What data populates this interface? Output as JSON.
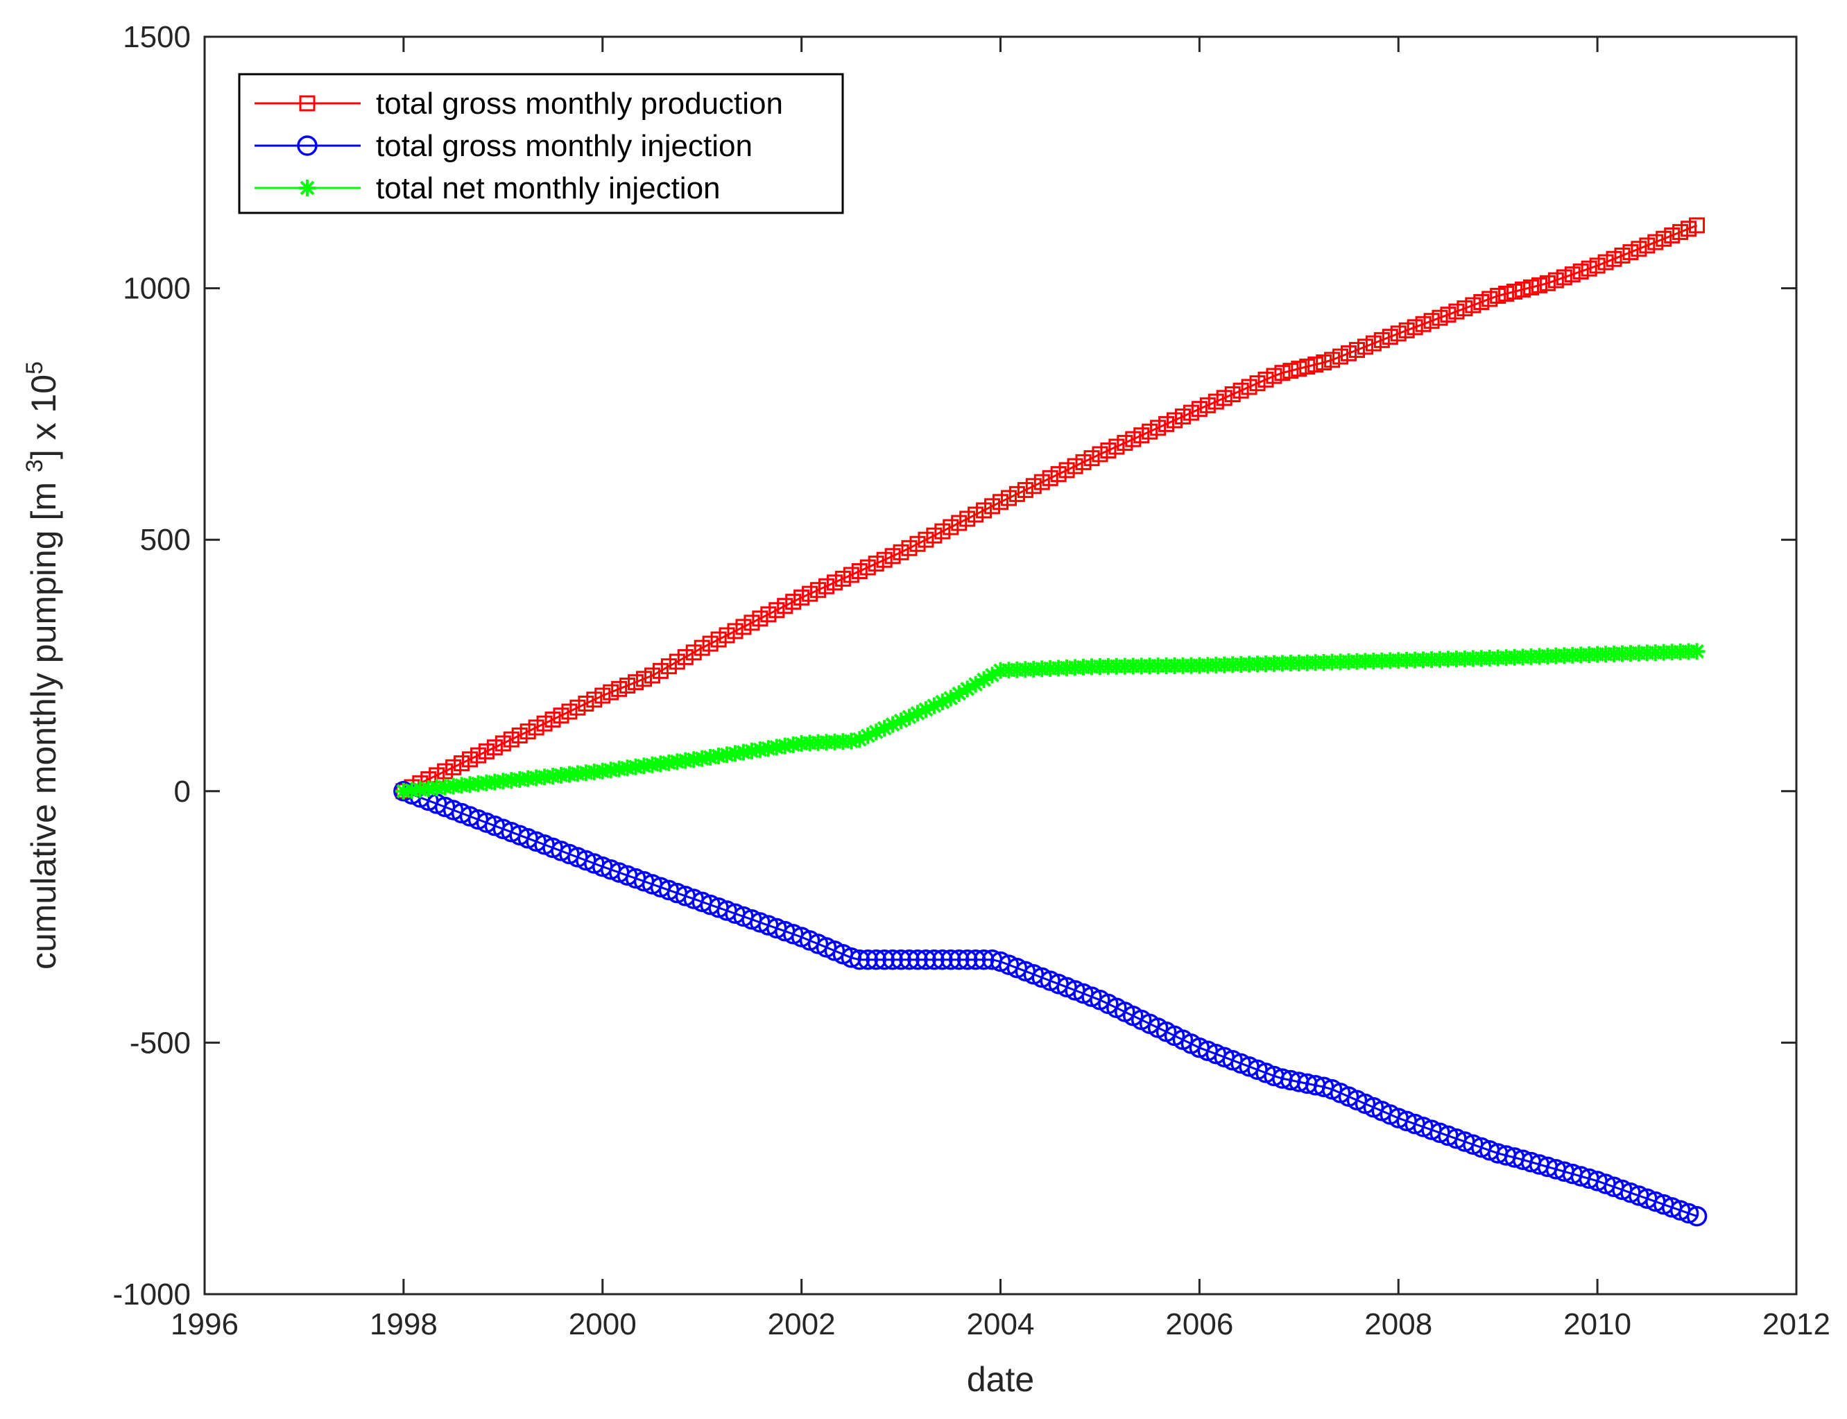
{
  "chart_data": {
    "type": "line",
    "title": "",
    "xlabel": "date",
    "ylabel": {
      "prefix": "cumulative monthly pumping [m ",
      "sup1": "3",
      "middle": "] x 10",
      "sup2": "5"
    },
    "xlim": [
      1996,
      2012
    ],
    "ylim": [
      -1000,
      1500
    ],
    "xticks": [
      1996,
      1998,
      2000,
      2002,
      2004,
      2006,
      2008,
      2010,
      2012
    ],
    "yticks": [
      -1000,
      -500,
      0,
      500,
      1000,
      1500
    ],
    "xtick_labels": [
      "1996",
      "1998",
      "2000",
      "2002",
      "2004",
      "2006",
      "2008",
      "2010",
      "2012"
    ],
    "ytick_labels": [
      "-1000",
      "-500",
      "0",
      "500",
      "1000",
      "1500"
    ],
    "grid": false,
    "legend_position": "top-left",
    "series": [
      {
        "name": "total gross monthly production",
        "color": "#ff0000",
        "marker": "square",
        "points": [
          [
            1998.0,
            0
          ],
          [
            1999.0,
            95
          ],
          [
            2000.0,
            190
          ],
          [
            2000.5,
            230
          ],
          [
            2001.0,
            285
          ],
          [
            2002.0,
            385
          ],
          [
            2002.5,
            430
          ],
          [
            2003.0,
            475
          ],
          [
            2004.0,
            575
          ],
          [
            2005.0,
            670
          ],
          [
            2006.0,
            760
          ],
          [
            2006.8,
            830
          ],
          [
            2007.3,
            855
          ],
          [
            2008.0,
            910
          ],
          [
            2009.0,
            985
          ],
          [
            2009.5,
            1010
          ],
          [
            2010.0,
            1045
          ],
          [
            2011.0,
            1125
          ]
        ]
      },
      {
        "name": "total gross monthly injection",
        "color": "#0000ff",
        "marker": "circle",
        "points": [
          [
            1998.0,
            0
          ],
          [
            1999.0,
            -75
          ],
          [
            2000.0,
            -150
          ],
          [
            2001.0,
            -220
          ],
          [
            2002.0,
            -290
          ],
          [
            2002.55,
            -335
          ],
          [
            2003.0,
            -335
          ],
          [
            2003.95,
            -335
          ],
          [
            2005.0,
            -415
          ],
          [
            2006.0,
            -510
          ],
          [
            2006.8,
            -570
          ],
          [
            2007.3,
            -590
          ],
          [
            2008.0,
            -650
          ],
          [
            2009.0,
            -720
          ],
          [
            2009.2,
            -730
          ],
          [
            2010.0,
            -775
          ],
          [
            2011.0,
            -845
          ]
        ]
      },
      {
        "name": "total net monthly injection",
        "color": "#00ff00",
        "marker": "asterisk",
        "points": [
          [
            1998.0,
            0
          ],
          [
            1999.0,
            20
          ],
          [
            2000.0,
            40
          ],
          [
            2001.0,
            65
          ],
          [
            2002.0,
            95
          ],
          [
            2002.55,
            100
          ],
          [
            2003.0,
            140
          ],
          [
            2003.5,
            185
          ],
          [
            2004.0,
            240
          ],
          [
            2005.0,
            248
          ],
          [
            2006.0,
            250
          ],
          [
            2007.0,
            255
          ],
          [
            2008.0,
            260
          ],
          [
            2009.0,
            265
          ],
          [
            2010.0,
            272
          ],
          [
            2011.0,
            278
          ]
        ]
      }
    ]
  }
}
